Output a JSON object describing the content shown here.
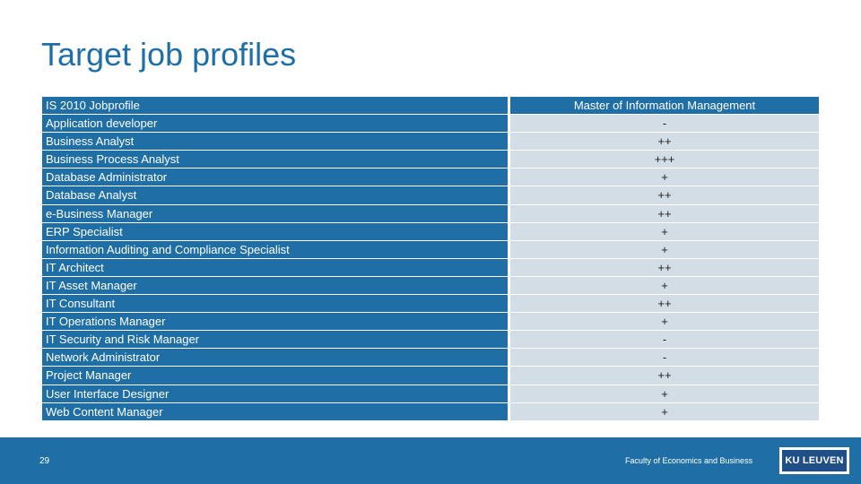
{
  "slide": {
    "title": "Target job profiles",
    "page_number": "29",
    "faculty": "Faculty of Economics and Business",
    "logo_text": "KU LEUVEN"
  },
  "table": {
    "headers": [
      "IS 2010 Jobprofile",
      "Master of Information Management"
    ],
    "rows": [
      {
        "profile": "Application developer",
        "rating": "-"
      },
      {
        "profile": "Business Analyst",
        "rating": "++"
      },
      {
        "profile": "Business Process Analyst",
        "rating": "+++"
      },
      {
        "profile": "Database Administrator",
        "rating": "+"
      },
      {
        "profile": "Database Analyst",
        "rating": "++"
      },
      {
        "profile": "e-Business Manager",
        "rating": "++"
      },
      {
        "profile": "ERP Specialist",
        "rating": "+"
      },
      {
        "profile": "Information Auditing and Compliance Specialist",
        "rating": "+"
      },
      {
        "profile": "IT Architect",
        "rating": "++"
      },
      {
        "profile": "IT Asset Manager",
        "rating": "+"
      },
      {
        "profile": "IT Consultant",
        "rating": "++"
      },
      {
        "profile": "IT Operations Manager",
        "rating": "+"
      },
      {
        "profile": "IT Security and Risk Manager",
        "rating": "-"
      },
      {
        "profile": "Network Administrator",
        "rating": "-"
      },
      {
        "profile": "Project Manager",
        "rating": "++"
      },
      {
        "profile": "User Interface Designer",
        "rating": "+"
      },
      {
        "profile": "Web Content Manager",
        "rating": "+"
      }
    ]
  },
  "colors": {
    "brand_blue": "#1f6fa6",
    "cell_light": "#d3dde6",
    "logo_dark": "#1f4f86"
  }
}
